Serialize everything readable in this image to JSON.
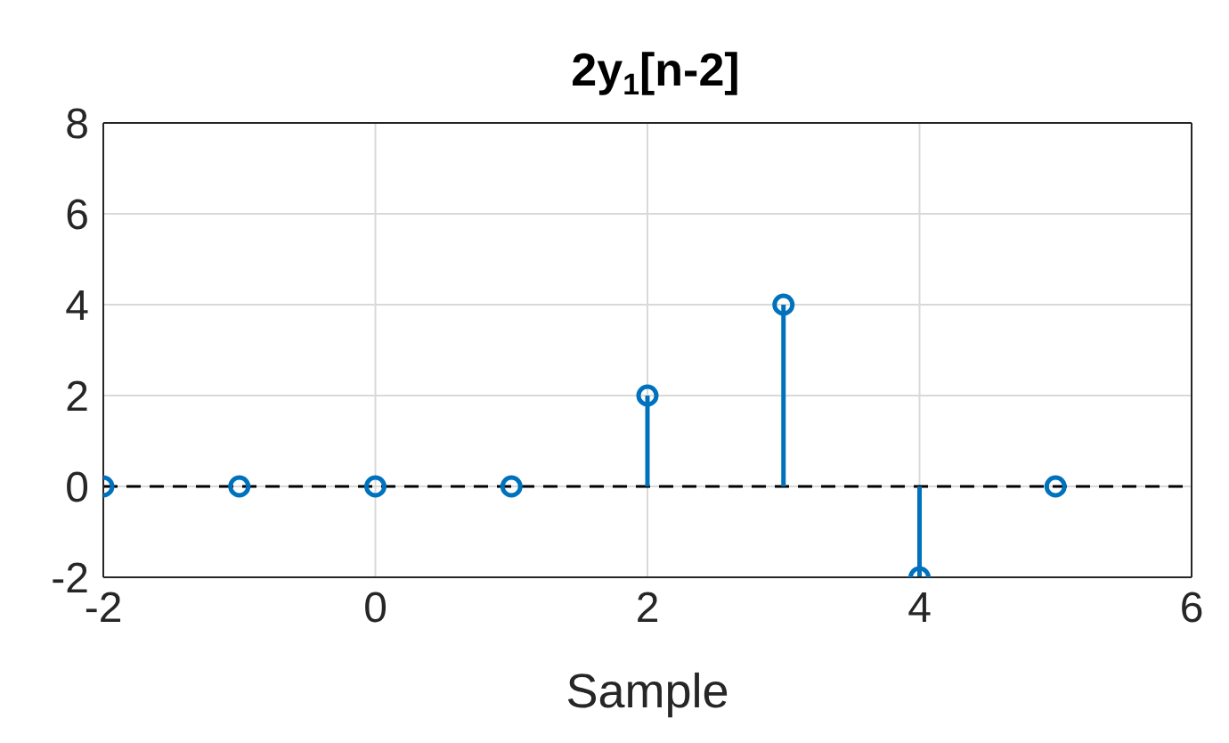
{
  "chart_data": {
    "type": "lollipop",
    "title": "2y$_{1}$[n-2]",
    "xlabel": "Sample",
    "x": [
      -2,
      -1,
      0,
      1,
      2,
      3,
      4,
      5
    ],
    "values": [
      0,
      0,
      0,
      0,
      2,
      4,
      -2,
      0
    ],
    "color": "#0072bd",
    "marker": "circle",
    "xlim": [
      -2,
      6
    ],
    "xticks": [
      -2,
      0,
      2,
      4,
      6
    ],
    "ylim": [
      -2,
      8
    ],
    "yticks": [
      -2,
      0,
      2,
      4,
      6,
      8
    ],
    "grid": true,
    "ref_lines": [
      {
        "axis": "y",
        "value": 0,
        "color": "#000000",
        "line_style": "dashed"
      }
    ]
  }
}
